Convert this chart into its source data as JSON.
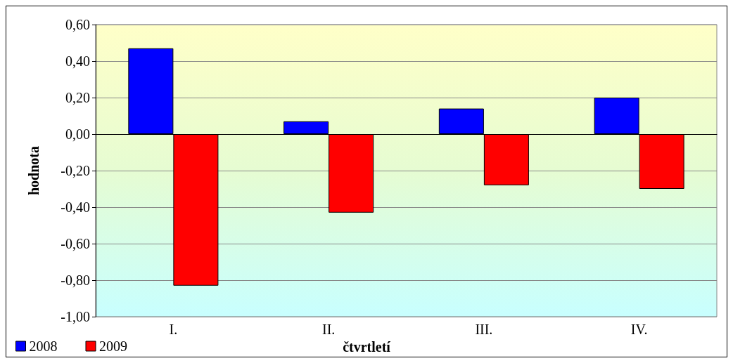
{
  "chart_data": {
    "type": "bar",
    "xlabel": "čtvrtletí",
    "ylabel": "hodnota",
    "categories": [
      "I.",
      "II.",
      "III.",
      "IV."
    ],
    "series": [
      {
        "name": "2008",
        "color": "#0000ff",
        "values": [
          0.47,
          0.07,
          0.14,
          0.2
        ]
      },
      {
        "name": "2009",
        "color": "#ff0000",
        "values": [
          -0.83,
          -0.43,
          -0.28,
          -0.3
        ]
      }
    ],
    "ylim": [
      -1,
      0.6
    ],
    "yticks": [
      {
        "value": -1,
        "label": "-1,00"
      },
      {
        "value": -0.8,
        "label": "-0,80"
      },
      {
        "value": -0.6,
        "label": "-0,60"
      },
      {
        "value": -0.4,
        "label": "-0,40"
      },
      {
        "value": -0.2,
        "label": "-0,20"
      },
      {
        "value": 0,
        "label": "0,00"
      },
      {
        "value": 0.2,
        "label": "0,20"
      },
      {
        "value": 0.4,
        "label": "0,40"
      },
      {
        "value": 0.6,
        "label": "0,60"
      }
    ],
    "grid": "y",
    "legend": "bottom left"
  }
}
